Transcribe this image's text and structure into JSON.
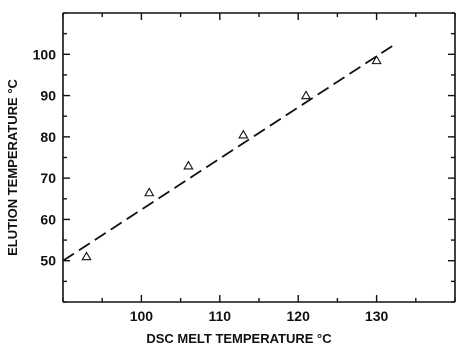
{
  "chart_data": {
    "type": "scatter",
    "xlabel": "DSC MELT TEMPERATURE °C",
    "ylabel": "ELUTION TEMPERATURE °C",
    "xlim": [
      90,
      140
    ],
    "ylim": [
      40,
      110
    ],
    "x_ticks": [
      100,
      110,
      120,
      130
    ],
    "y_ticks": [
      50,
      60,
      70,
      80,
      90,
      100
    ],
    "grid": false,
    "legend": "none",
    "marker": "open-triangle",
    "series": [
      {
        "x": [
          93,
          101,
          106,
          113,
          121,
          130
        ],
        "y": [
          51,
          66.5,
          73,
          80.5,
          90,
          98.5
        ]
      }
    ],
    "fit_line": {
      "style": "dashed",
      "x": [
        90,
        132
      ],
      "y": [
        50,
        102
      ]
    }
  }
}
